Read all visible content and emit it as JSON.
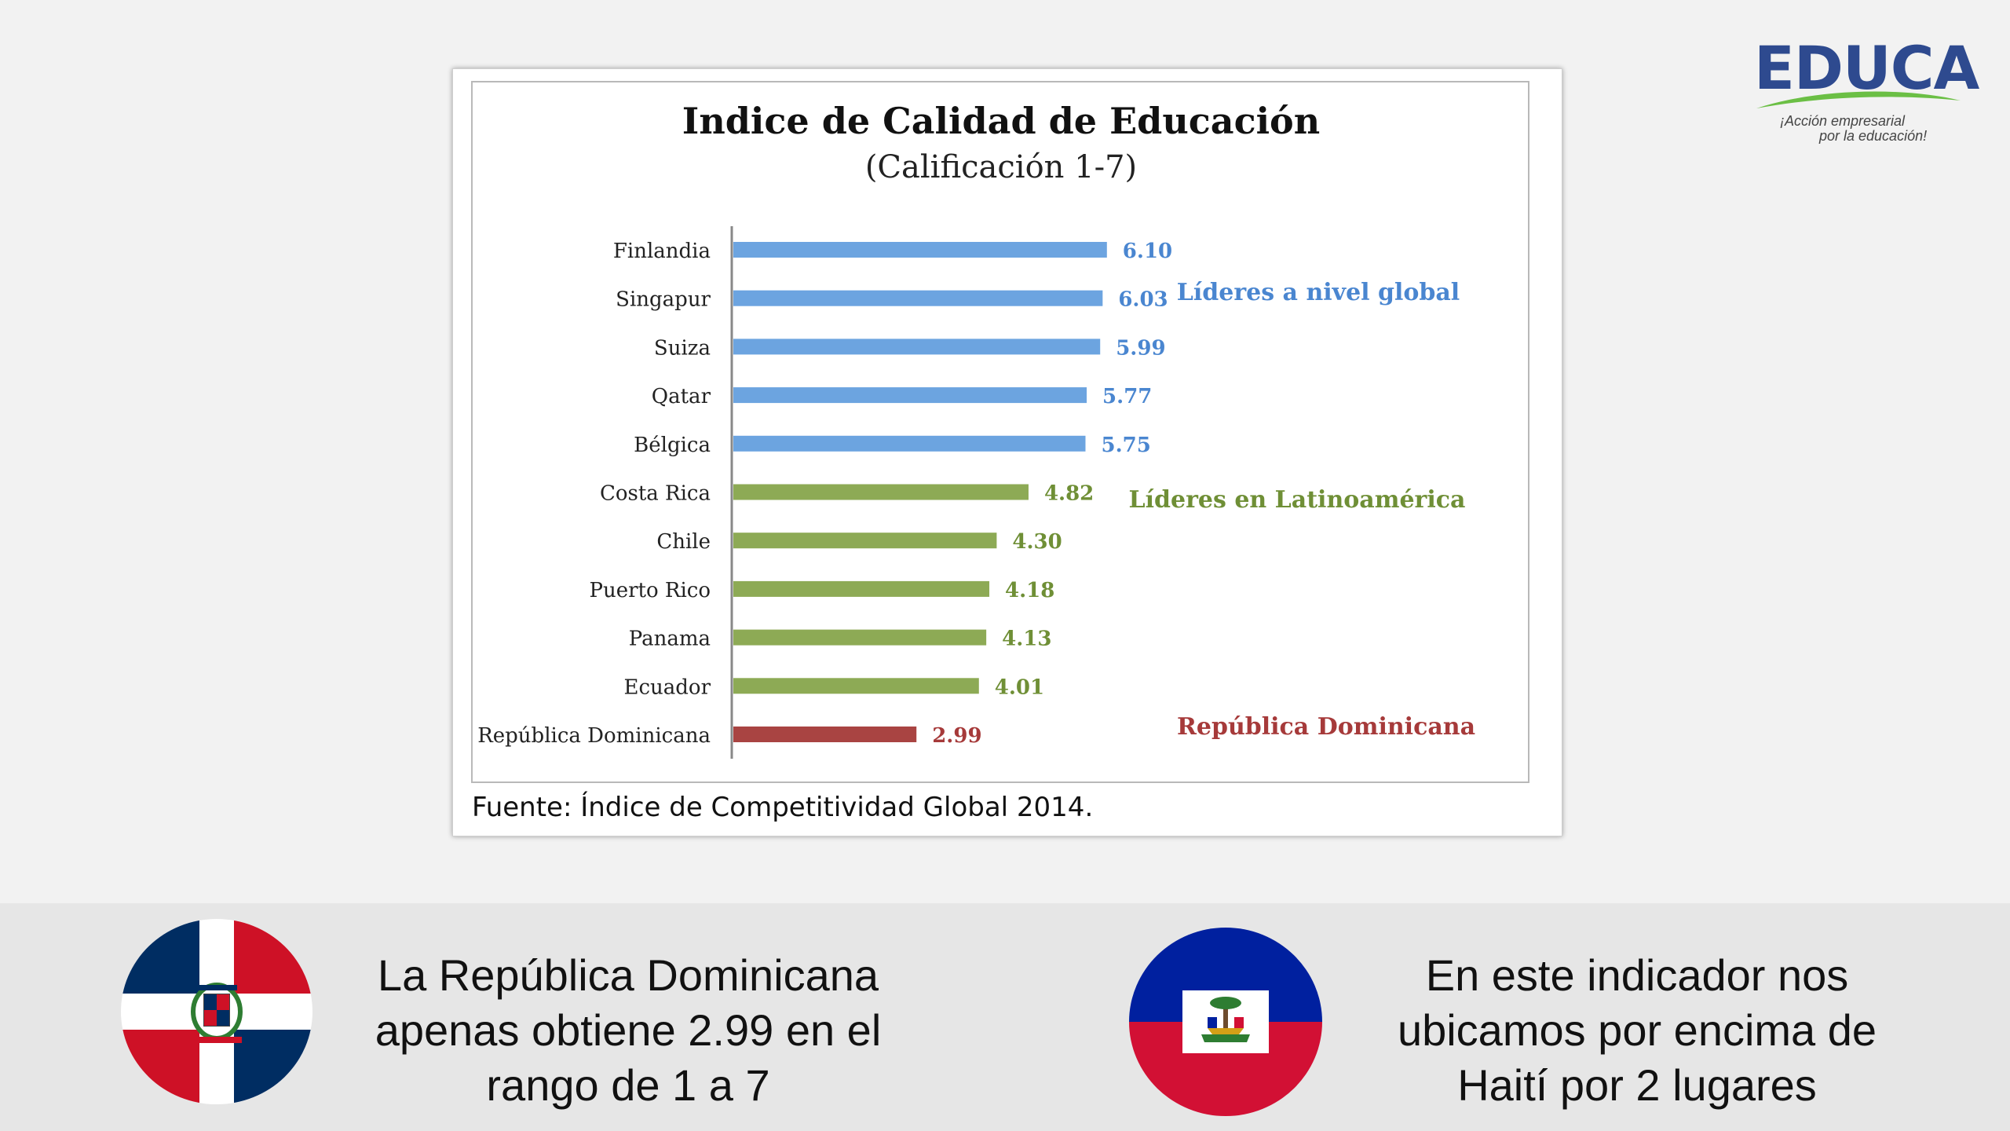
{
  "logo": {
    "name": "EDUCA",
    "tagline_line1": "¡Acción empresarial",
    "tagline_line2": "por la educación!",
    "colors": {
      "word": "#2e4a8f",
      "swoosh": "#6bbf45"
    }
  },
  "chart_data": {
    "type": "bar",
    "orientation": "horizontal",
    "title": "Indice de Calidad de Educación",
    "subtitle": "(Calificación 1-7)",
    "source": "Fuente: Índice de Competitividad Global 2014.",
    "categories": [
      "Finlandia",
      "Singapur",
      "Suiza",
      "Qatar",
      "Bélgica",
      "Costa Rica",
      "Chile",
      "Puerto Rico",
      "Panama",
      "Ecuador",
      "República Dominicana"
    ],
    "values": [
      6.1,
      6.03,
      5.99,
      5.77,
      5.75,
      4.82,
      4.3,
      4.18,
      4.13,
      4.01,
      2.99
    ],
    "value_labels": [
      "6.10",
      "6.03",
      "5.99",
      "5.77",
      "5.75",
      "4.82",
      "4.30",
      "4.18",
      "4.13",
      "4.01",
      "2.99"
    ],
    "groups": [
      {
        "name": "Líderes a nivel global",
        "color": "#6ca4e0",
        "start": 0,
        "end": 4
      },
      {
        "name": "Líderes en Latinoamérica",
        "color": "#8daa55",
        "start": 5,
        "end": 9
      },
      {
        "name": "República Dominicana",
        "color": "#a94442",
        "start": 10,
        "end": 10
      }
    ],
    "label_colors": [
      "#4a86d0",
      "#6f8f36",
      "#a63a3a"
    ],
    "xlim": [
      0,
      7
    ],
    "grid": false
  },
  "captions": {
    "left_lines": [
      "La República Dominicana",
      "apenas obtiene 2.99 en el",
      "rango de 1 a 7"
    ],
    "right_lines": [
      "En este indicador nos",
      "ubicamos por encima de",
      "Haití por 2 lugares"
    ]
  },
  "flags": {
    "left": {
      "icon": "dominican-republic-flag-icon",
      "colors": [
        "#002d62",
        "#ce1126",
        "#ffffff"
      ]
    },
    "right": {
      "icon": "haiti-flag-icon",
      "colors": [
        "#00209f",
        "#d21034",
        "#ffffff"
      ]
    }
  }
}
